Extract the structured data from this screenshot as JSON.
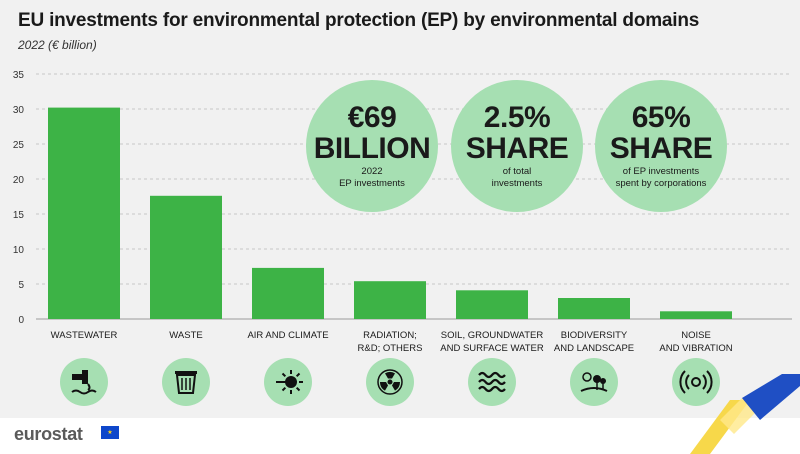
{
  "header": {
    "title": "EU investments for environmental protection (EP) by environmental domains",
    "subtitle": "2022 (€ billion)"
  },
  "stats": [
    {
      "big_line1": "€69",
      "big_line2": "BILLION",
      "small_line1": "2022",
      "small_line2": "EP investments"
    },
    {
      "big_line1": "2.5%",
      "big_line2": "SHARE",
      "small_line1": "of total",
      "small_line2": "investments"
    },
    {
      "big_line1": "65%",
      "big_line2": "SHARE",
      "small_line1": "of EP investments",
      "small_line2": "spent by corporations"
    }
  ],
  "footer": {
    "logo_text": "eurostat"
  },
  "icons": [
    "wastewater-icon",
    "trash-bin-icon",
    "air-climate-icon",
    "radiation-icon",
    "waves-icon",
    "landscape-icon",
    "noise-icon"
  ],
  "colors": {
    "bar": "#3db346",
    "circle": "#a6dfb2",
    "panel": "#f1f1f1",
    "grid": "#c8c8c8"
  },
  "chart_data": {
    "type": "bar",
    "categories": [
      [
        "WASTEWATER"
      ],
      [
        "WASTE"
      ],
      [
        "AIR AND CLIMATE"
      ],
      [
        "RADIATION;",
        "R&D; OTHERS"
      ],
      [
        "SOIL, GROUNDWATER",
        "AND SURFACE WATER"
      ],
      [
        "BIODIVERSITY",
        "AND LANDSCAPE"
      ],
      [
        "NOISE",
        "AND VIBRATION"
      ]
    ],
    "values": [
      30.2,
      17.6,
      7.3,
      5.4,
      4.1,
      3.0,
      1.1
    ],
    "yticks": [
      0,
      5,
      10,
      15,
      20,
      25,
      30,
      35
    ],
    "ylim": [
      0,
      35
    ],
    "grid": true,
    "title": "EU investments for environmental protection (EP) by environmental domains",
    "subtitle": "2022 (€ billion)"
  }
}
